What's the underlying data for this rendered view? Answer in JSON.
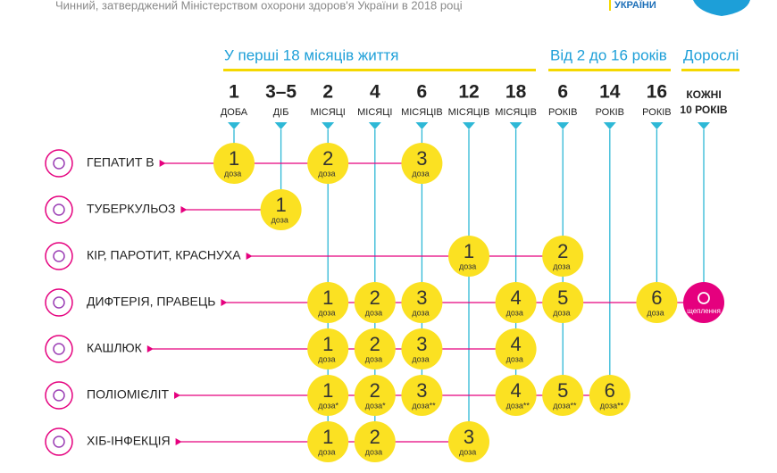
{
  "header": {
    "subtitle": "Чинний, затверджений Міністерством охорони здоров'я України в 2018 році",
    "logo_text": "УКРАЇНИ"
  },
  "groups": [
    "У перші 18 місяців життя",
    "Від 2 до 16 років",
    "Дорослі"
  ],
  "columns": [
    {
      "top": "1",
      "bottom": "ДОБА"
    },
    {
      "top": "3–5",
      "bottom": "ДІБ"
    },
    {
      "top": "2",
      "bottom": "МІСЯЦІ"
    },
    {
      "top": "4",
      "bottom": "МІСЯЦІ"
    },
    {
      "top": "6",
      "bottom": "МІСЯЦІВ"
    },
    {
      "top": "12",
      "bottom": "МІСЯЦІВ"
    },
    {
      "top": "18",
      "bottom": "МІСЯЦІВ"
    },
    {
      "top": "6",
      "bottom": "РОКІВ"
    },
    {
      "top": "14",
      "bottom": "РОКІВ"
    },
    {
      "top": "16",
      "bottom": "РОКІВ"
    },
    {
      "top": "КОЖНІ",
      "bottom": "10 РОКІВ"
    }
  ],
  "rows": [
    {
      "label": "ГЕПАТИТ В",
      "doses": [
        {
          "n": "1",
          "label": "доза"
        },
        null,
        {
          "n": "2",
          "label": "доза"
        },
        null,
        {
          "n": "3",
          "label": "доза"
        },
        null,
        null,
        null,
        null,
        null,
        null
      ]
    },
    {
      "label": "ТУБЕРКУЛЬОЗ",
      "doses": [
        null,
        {
          "n": "1",
          "label": "доза"
        },
        null,
        null,
        null,
        null,
        null,
        null,
        null,
        null,
        null
      ]
    },
    {
      "label": "КІР, ПАРОТИТ, КРАСНУХА",
      "doses": [
        null,
        null,
        null,
        null,
        null,
        {
          "n": "1",
          "label": "доза"
        },
        null,
        {
          "n": "2",
          "label": "доза"
        },
        null,
        null,
        null
      ]
    },
    {
      "label": "ДИФТЕРІЯ, ПРАВЕЦЬ",
      "doses": [
        null,
        null,
        {
          "n": "1",
          "label": "доза"
        },
        {
          "n": "2",
          "label": "доза"
        },
        {
          "n": "3",
          "label": "доза"
        },
        null,
        {
          "n": "4",
          "label": "доза"
        },
        {
          "n": "5",
          "label": "доза"
        },
        null,
        {
          "n": "6",
          "label": "доза"
        },
        {
          "label": "щеплення"
        }
      ]
    },
    {
      "label": "КАШЛЮК",
      "doses": [
        null,
        null,
        {
          "n": "1",
          "label": "доза"
        },
        {
          "n": "2",
          "label": "доза"
        },
        {
          "n": "3",
          "label": "доза"
        },
        null,
        {
          "n": "4",
          "label": "доза"
        },
        null,
        null,
        null,
        null
      ]
    },
    {
      "label": "ПОЛІОМІЄЛІТ",
      "doses": [
        null,
        null,
        {
          "n": "1",
          "label": "доза*"
        },
        {
          "n": "2",
          "label": "доза*"
        },
        {
          "n": "3",
          "label": "доза**"
        },
        null,
        {
          "n": "4",
          "label": "доза**"
        },
        {
          "n": "5",
          "label": "доза**"
        },
        {
          "n": "6",
          "label": "доза**"
        },
        null,
        null
      ]
    },
    {
      "label": "ХІБ-ІНФЕКЦІЯ",
      "doses": [
        null,
        null,
        {
          "n": "1",
          "label": "доза"
        },
        {
          "n": "2",
          "label": "доза"
        },
        null,
        {
          "n": "3",
          "label": "доза"
        },
        null,
        null,
        null,
        null,
        null
      ]
    }
  ]
}
